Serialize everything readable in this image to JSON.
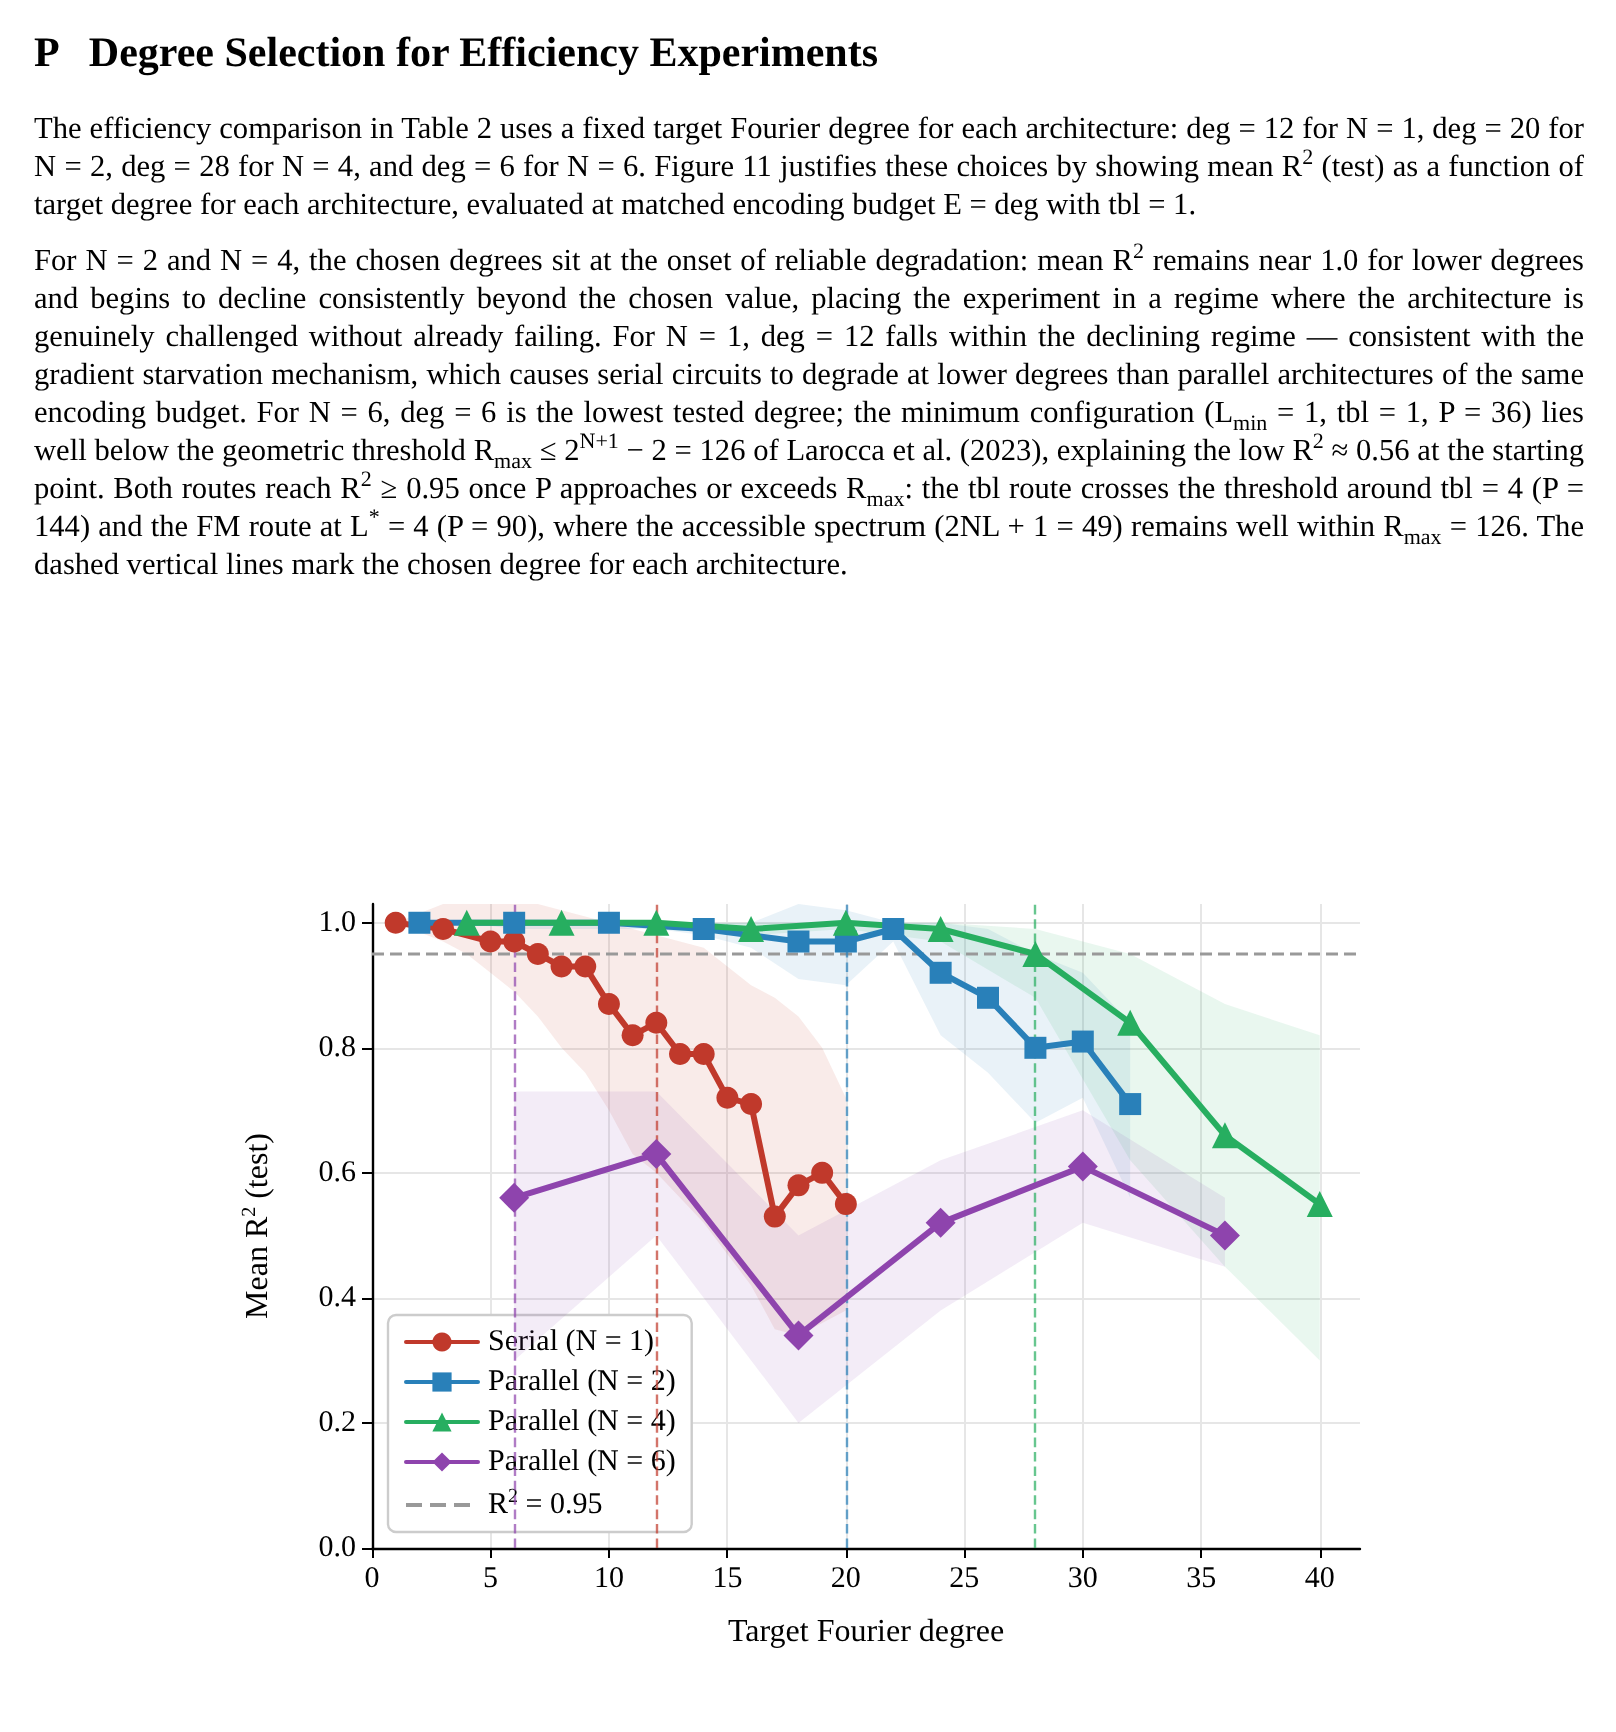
{
  "chart_data": {
    "type": "line",
    "title": "P   Degree Selection for Efficiency Experiments",
    "annotations": [
      "The efficiency comparison in Table 2 uses a fixed target Fourier degree for each architecture: deg = 12 for N = 1, deg = 20 for N = 2, deg = 28 for N = 4, and deg = 6 for N = 6. Figure 11 justifies these choices by showing mean R$^{2}$ (test) as a function of target degree for each architecture, evaluated at matched encoding budget E = deg with tbl = 1.",
      "For N = 2 and N = 4, the chosen degrees sit at the onset of reliable degradation: mean R$^{2}$ remains near 1.0 for lower degrees and begins to decline consistently beyond the chosen value, placing the experiment in a regime where the architecture is genuinely challenged without already failing. For N = 1, deg = 12 falls within the declining regime — consistent with the gradient starvation mechanism, which causes serial circuits to degrade at lower degrees than parallel architectures of the same encoding budget. For N = 6, deg = 6 is the lowest tested degree; the minimum configuration (L$_{min}$ = 1, tbl = 1, P = 36) lies well below the geometric threshold R$_{max}$ ≤ 2$^{N+1}$ − 2 = 126 of Larocca et al. (2023), explaining the low R$^{2}$ ≈ 0.56 at the starting point. Both routes reach R$^{2}$ ≥ 0.95 once P approaches or exceeds R$_{max}$: the tbl route crosses the threshold around tbl = 4 (P = 144) and the FM route at L$^{*}$ = 4 (P = 90), where the accessible spectrum (2NL + 1 = 49) remains well within R$_{max}$ = 126. The dashed vertical lines mark the chosen degree for each architecture."
    ],
    "xlabel": "Target Fourier degree",
    "ylabel": "Mean R$^{2}$ (test)",
    "xlim": [
      0,
      41.7
    ],
    "xticks": [
      0,
      5,
      10,
      15,
      20,
      25,
      30,
      35,
      40
    ],
    "ylim": [
      0,
      1.03
    ],
    "yticks": [
      {
        "value": 0,
        "label": "0.0"
      },
      {
        "value": 0.2,
        "label": "0.2"
      },
      {
        "value": 0.4,
        "label": "0.4"
      },
      {
        "value": 0.6,
        "label": "0.6"
      },
      {
        "value": 0.8,
        "label": "0.8"
      },
      {
        "value": 1,
        "label": "1.0"
      }
    ],
    "grid": true,
    "legend": "bottom left",
    "line_style": "solid",
    "series": [
      {
        "name": "Serial (N = 1)",
        "color": "#c0392b",
        "marker": "circle",
        "x": [
          1,
          3,
          4,
          5,
          6,
          7,
          8,
          9,
          10,
          11,
          12,
          13,
          14,
          15,
          16,
          17,
          18,
          19,
          20
        ],
        "values": [
          1.0,
          0.99,
          null,
          0.97,
          0.97,
          0.95,
          0.93,
          0.93,
          0.87,
          0.82,
          0.84,
          0.79,
          0.79,
          0.72,
          0.71,
          0.53,
          0.58,
          0.6,
          0.55
        ],
        "lower": [
          1.0,
          0.97,
          0.95,
          0.92,
          0.89,
          0.85,
          0.8,
          0.76,
          0.7,
          0.63,
          0.6,
          0.56,
          0.52,
          0.47,
          0.42,
          0.35,
          0.34,
          0.36,
          0.38
        ],
        "upper": [
          1.0,
          1.03,
          1.03,
          1.03,
          1.03,
          1.03,
          1.02,
          1.01,
          1.0,
          0.99,
          0.98,
          0.97,
          0.96,
          0.93,
          0.9,
          0.88,
          0.85,
          0.8,
          0.72
        ]
      },
      {
        "name": "Parallel (N = 2)",
        "color": "#2980b9",
        "marker": "square",
        "x": [
          2,
          4,
          6,
          8,
          10,
          12,
          14,
          16,
          18,
          20,
          22,
          24,
          26,
          28,
          30,
          32
        ],
        "values": [
          1.0,
          null,
          1.0,
          null,
          1.0,
          null,
          0.99,
          null,
          0.97,
          0.97,
          0.99,
          0.92,
          0.88,
          0.8,
          0.81,
          0.71
        ],
        "lower": [
          1.0,
          1.0,
          0.99,
          0.99,
          0.99,
          0.99,
          0.98,
          0.96,
          0.91,
          0.9,
          0.97,
          0.82,
          0.76,
          0.68,
          0.72,
          0.56
        ],
        "upper": [
          1.0,
          1.0,
          1.0,
          1.0,
          1.0,
          1.0,
          1.0,
          1.0,
          1.03,
          1.02,
          1.0,
          1.0,
          0.99,
          0.95,
          0.92,
          0.84
        ]
      },
      {
        "name": "Parallel (N = 4)",
        "color": "#27ae60",
        "marker": "triangle",
        "x": [
          4,
          8,
          12,
          16,
          20,
          24,
          28,
          32,
          36,
          40
        ],
        "values": [
          1.0,
          1.0,
          1.0,
          0.99,
          1.0,
          0.99,
          0.95,
          0.84,
          0.66,
          0.55
        ],
        "lower": [
          1.0,
          1.0,
          0.99,
          0.98,
          0.99,
          0.97,
          0.88,
          0.62,
          0.45,
          0.3
        ],
        "upper": [
          1.0,
          1.0,
          1.0,
          1.0,
          1.0,
          1.0,
          0.99,
          0.95,
          0.87,
          0.82
        ]
      },
      {
        "name": "Parallel (N = 6)",
        "color": "#8e44ad",
        "marker": "diamond",
        "x": [
          6,
          12,
          18,
          24,
          30,
          36
        ],
        "values": [
          0.56,
          0.63,
          0.34,
          0.52,
          0.61,
          0.5
        ],
        "lower": [
          0.3,
          0.5,
          0.2,
          0.38,
          0.52,
          0.45
        ],
        "upper": [
          0.73,
          0.73,
          0.5,
          0.62,
          0.7,
          0.56
        ]
      }
    ],
    "ref_lines": [
      {
        "axis": "y",
        "value": 0.95,
        "label": "R$^{2}$ = 0.95",
        "color": "#999999",
        "line_style": "dashed"
      },
      {
        "axis": "x",
        "value": 6,
        "color": "#8e44ad",
        "line_style": "dashed"
      },
      {
        "axis": "x",
        "value": 12,
        "color": "#c0392b",
        "line_style": "dashed"
      },
      {
        "axis": "x",
        "value": 20,
        "color": "#2980b9",
        "line_style": "dashed"
      },
      {
        "axis": "x",
        "value": 28,
        "color": "#27ae60",
        "line_style": "dashed"
      }
    ]
  }
}
